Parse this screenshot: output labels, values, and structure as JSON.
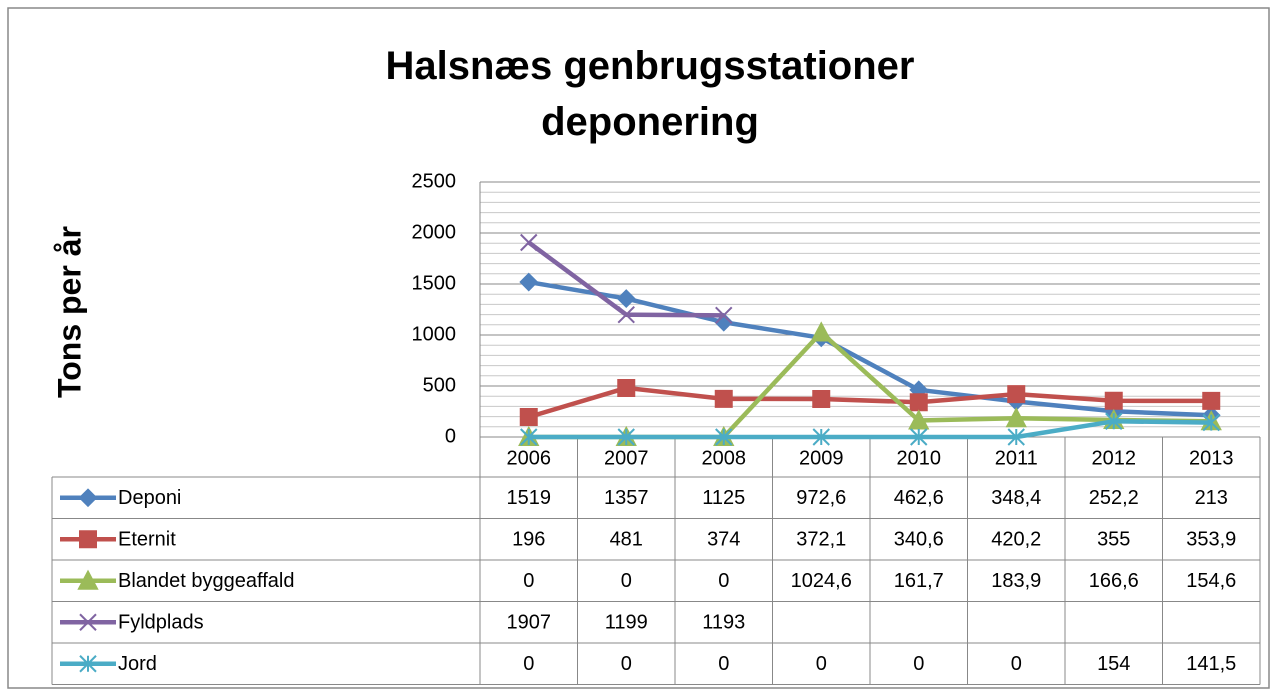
{
  "chart_data": {
    "type": "line",
    "title": "Halsnæs genbrugsstationer deponering",
    "y_label": "Tons per år",
    "categories": [
      "2006",
      "2007",
      "2008",
      "2009",
      "2010",
      "2011",
      "2012",
      "2013"
    ],
    "ylim": [
      0,
      2500
    ],
    "yticks": [
      0,
      500,
      1000,
      1500,
      2000,
      2500
    ],
    "grid": true,
    "series": [
      {
        "name": "Deponi",
        "color": "#4f81bd",
        "marker": "diamond",
        "values": [
          1519,
          1357,
          1125,
          972.6,
          462.6,
          348.4,
          252.2,
          213
        ],
        "value_labels": [
          "1519",
          "1357",
          "1125",
          "972,6",
          "462,6",
          "348,4",
          "252,2",
          "213"
        ]
      },
      {
        "name": "Eternit",
        "color": "#c0504d",
        "marker": "square",
        "values": [
          196,
          481,
          374,
          372.1,
          340.6,
          420.2,
          355,
          353.9
        ],
        "value_labels": [
          "196",
          "481",
          "374",
          "372,1",
          "340,6",
          "420,2",
          "355",
          "353,9"
        ]
      },
      {
        "name": "Blandet byggeaffald",
        "color": "#9bbb59",
        "marker": "triangle",
        "values": [
          0,
          0,
          0,
          1024.6,
          161.7,
          183.9,
          166.6,
          154.6
        ],
        "value_labels": [
          "0",
          "0",
          "0",
          "1024,6",
          "161,7",
          "183,9",
          "166,6",
          "154,6"
        ]
      },
      {
        "name": "Fyldplads",
        "color": "#8064a2",
        "marker": "x",
        "values": [
          1907,
          1199,
          1193,
          null,
          null,
          null,
          null,
          null
        ],
        "value_labels": [
          "1907",
          "1199",
          "1193",
          null,
          null,
          null,
          null,
          null
        ]
      },
      {
        "name": "Jord",
        "color": "#4bacc6",
        "marker": "asterisk",
        "values": [
          0,
          0,
          0,
          0,
          0,
          0,
          154,
          141.5
        ],
        "value_labels": [
          "0",
          "0",
          "0",
          "0",
          "0",
          "0",
          "154",
          "141,5"
        ]
      }
    ]
  }
}
